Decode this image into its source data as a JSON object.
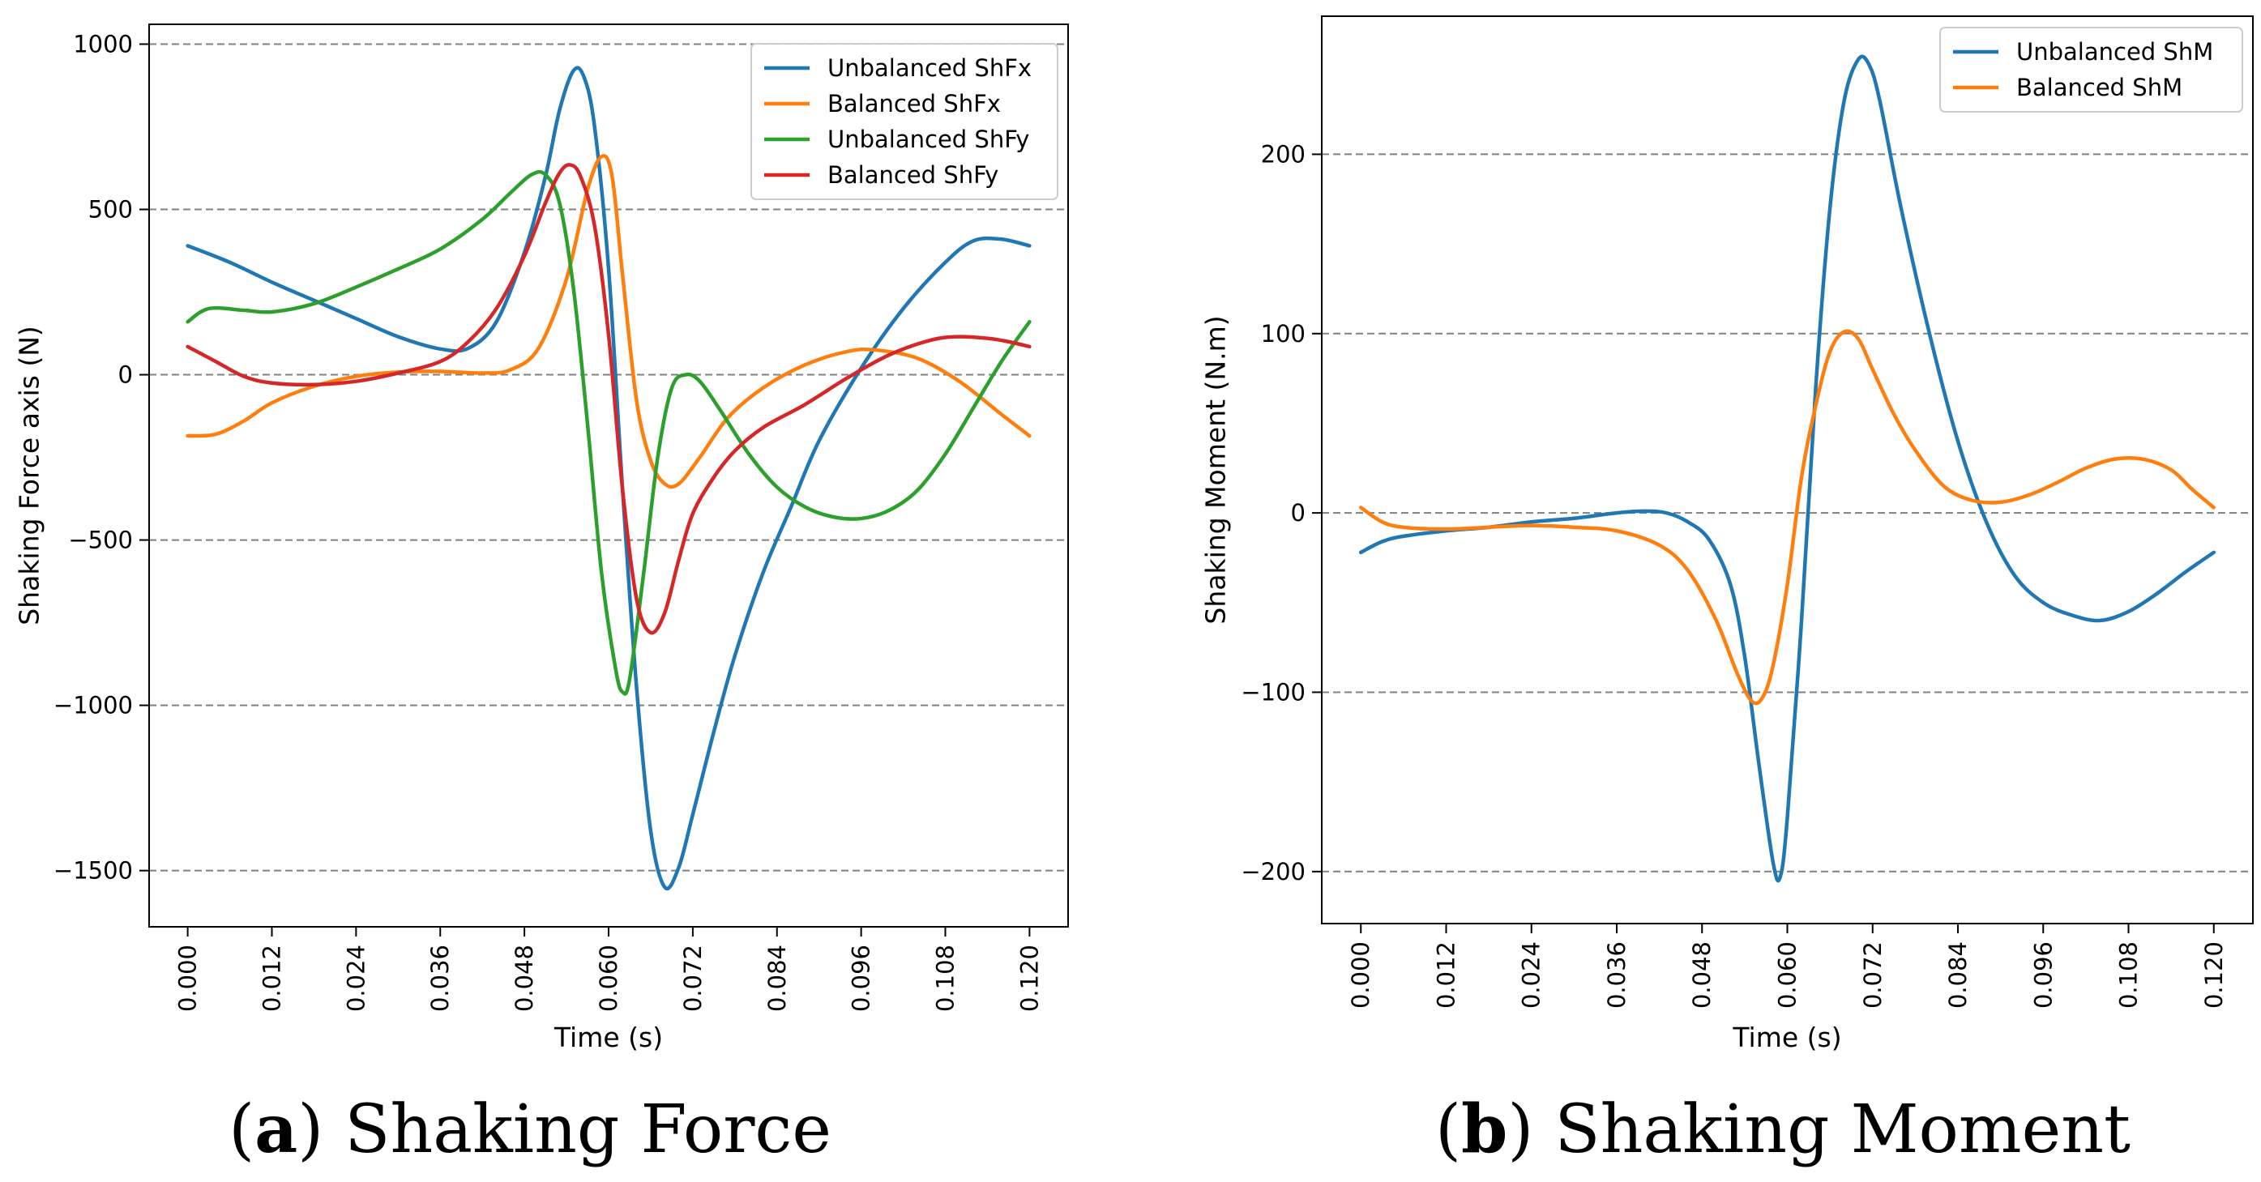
{
  "chart_data": [
    {
      "type": "line",
      "caption_letter": "a",
      "caption_text": "Shaking Force",
      "xlabel": "Time (s)",
      "ylabel": "Shaking Force axis (N)",
      "xlim": [
        -0.0055,
        0.1255
      ],
      "ylim": [
        -1670,
        1060
      ],
      "xticks": [
        "0.000",
        "0.012",
        "0.024",
        "0.036",
        "0.048",
        "0.060",
        "0.072",
        "0.084",
        "0.096",
        "0.108",
        "0.120"
      ],
      "yticks": [
        1000,
        500,
        0,
        -500,
        -1000,
        -1500
      ],
      "ytick_labels": [
        "1000",
        "500",
        "0",
        "−500",
        "−1000",
        "−1500"
      ],
      "grid": "horizontal dashed",
      "legend_position": "top-right",
      "series": [
        {
          "name": "Unbalanced ShFx",
          "color": "#1f77b4",
          "points": [
            [
              0,
              390
            ],
            [
              0.006,
              340
            ],
            [
              0.012,
              280
            ],
            [
              0.018,
              225
            ],
            [
              0.024,
              170
            ],
            [
              0.03,
              115
            ],
            [
              0.036,
              78
            ],
            [
              0.04,
              80
            ],
            [
              0.044,
              160
            ],
            [
              0.048,
              370
            ],
            [
              0.051,
              600
            ],
            [
              0.053,
              800
            ],
            [
              0.055,
              920
            ],
            [
              0.0565,
              900
            ],
            [
              0.058,
              750
            ],
            [
              0.06,
              320
            ],
            [
              0.062,
              -350
            ],
            [
              0.064,
              -950
            ],
            [
              0.066,
              -1380
            ],
            [
              0.068,
              -1550
            ],
            [
              0.07,
              -1490
            ],
            [
              0.072,
              -1330
            ],
            [
              0.075,
              -1080
            ],
            [
              0.078,
              -850
            ],
            [
              0.082,
              -600
            ],
            [
              0.086,
              -400
            ],
            [
              0.09,
              -200
            ],
            [
              0.096,
              20
            ],
            [
              0.102,
              200
            ],
            [
              0.108,
              340
            ],
            [
              0.112,
              405
            ],
            [
              0.116,
              410
            ],
            [
              0.12,
              390
            ]
          ]
        },
        {
          "name": "Balanced ShFx",
          "color": "#ff7f0e",
          "points": [
            [
              0,
              -185
            ],
            [
              0.004,
              -180
            ],
            [
              0.008,
              -140
            ],
            [
              0.012,
              -85
            ],
            [
              0.018,
              -35
            ],
            [
              0.024,
              -5
            ],
            [
              0.03,
              8
            ],
            [
              0.036,
              10
            ],
            [
              0.042,
              5
            ],
            [
              0.046,
              15
            ],
            [
              0.05,
              80
            ],
            [
              0.054,
              290
            ],
            [
              0.057,
              560
            ],
            [
              0.059,
              660
            ],
            [
              0.0605,
              600
            ],
            [
              0.062,
              300
            ],
            [
              0.064,
              -80
            ],
            [
              0.066,
              -260
            ],
            [
              0.068,
              -330
            ],
            [
              0.07,
              -330
            ],
            [
              0.073,
              -250
            ],
            [
              0.077,
              -130
            ],
            [
              0.082,
              -40
            ],
            [
              0.088,
              30
            ],
            [
              0.094,
              70
            ],
            [
              0.098,
              75
            ],
            [
              0.104,
              50
            ],
            [
              0.11,
              -20
            ],
            [
              0.116,
              -120
            ],
            [
              0.12,
              -185
            ]
          ]
        },
        {
          "name": "Unbalanced ShFy",
          "color": "#2ca02c",
          "points": [
            [
              0,
              160
            ],
            [
              0.003,
              200
            ],
            [
              0.008,
              195
            ],
            [
              0.012,
              190
            ],
            [
              0.018,
              215
            ],
            [
              0.024,
              265
            ],
            [
              0.03,
              320
            ],
            [
              0.036,
              380
            ],
            [
              0.042,
              470
            ],
            [
              0.046,
              550
            ],
            [
              0.049,
              605
            ],
            [
              0.051,
              605
            ],
            [
              0.053,
              520
            ],
            [
              0.055,
              260
            ],
            [
              0.057,
              -150
            ],
            [
              0.059,
              -600
            ],
            [
              0.061,
              -890
            ],
            [
              0.062,
              -960
            ],
            [
              0.063,
              -920
            ],
            [
              0.065,
              -600
            ],
            [
              0.067,
              -250
            ],
            [
              0.069,
              -40
            ],
            [
              0.071,
              0
            ],
            [
              0.073,
              -20
            ],
            [
              0.076,
              -110
            ],
            [
              0.08,
              -240
            ],
            [
              0.084,
              -340
            ],
            [
              0.088,
              -400
            ],
            [
              0.092,
              -430
            ],
            [
              0.096,
              -435
            ],
            [
              0.1,
              -410
            ],
            [
              0.104,
              -350
            ],
            [
              0.108,
              -240
            ],
            [
              0.112,
              -100
            ],
            [
              0.116,
              40
            ],
            [
              0.12,
              160
            ]
          ]
        },
        {
          "name": "Balanced ShFy",
          "color": "#d62728",
          "points": [
            [
              0,
              85
            ],
            [
              0.004,
              40
            ],
            [
              0.008,
              -5
            ],
            [
              0.012,
              -25
            ],
            [
              0.018,
              -30
            ],
            [
              0.024,
              -20
            ],
            [
              0.03,
              5
            ],
            [
              0.036,
              40
            ],
            [
              0.04,
              100
            ],
            [
              0.044,
              200
            ],
            [
              0.048,
              360
            ],
            [
              0.051,
              520
            ],
            [
              0.053,
              610
            ],
            [
              0.0545,
              635
            ],
            [
              0.056,
              600
            ],
            [
              0.058,
              450
            ],
            [
              0.06,
              120
            ],
            [
              0.062,
              -350
            ],
            [
              0.064,
              -680
            ],
            [
              0.066,
              -780
            ],
            [
              0.068,
              -720
            ],
            [
              0.07,
              -560
            ],
            [
              0.072,
              -420
            ],
            [
              0.075,
              -310
            ],
            [
              0.078,
              -230
            ],
            [
              0.082,
              -160
            ],
            [
              0.088,
              -90
            ],
            [
              0.094,
              -10
            ],
            [
              0.1,
              60
            ],
            [
              0.106,
              105
            ],
            [
              0.11,
              115
            ],
            [
              0.114,
              110
            ],
            [
              0.117,
              100
            ],
            [
              0.12,
              85
            ]
          ]
        }
      ]
    },
    {
      "type": "line",
      "caption_letter": "b",
      "caption_text": "Shaking Moment",
      "xlabel": "Time (s)",
      "ylabel": "Shaking Moment (N.m)",
      "xlim": [
        -0.0055,
        0.1255
      ],
      "ylim": [
        -229,
        277
      ],
      "xticks": [
        "0.000",
        "0.012",
        "0.024",
        "0.036",
        "0.048",
        "0.060",
        "0.072",
        "0.084",
        "0.096",
        "0.108",
        "0.120"
      ],
      "yticks": [
        200,
        100,
        0,
        -100,
        -200
      ],
      "ytick_labels": [
        "200",
        "100",
        "0",
        "−100",
        "−200"
      ],
      "grid": "horizontal dashed",
      "legend_position": "top-right",
      "series": [
        {
          "name": "Unbalanced ShM",
          "color": "#1f77b4",
          "points": [
            [
              0,
              -22
            ],
            [
              0.003,
              -16
            ],
            [
              0.006,
              -13
            ],
            [
              0.012,
              -10
            ],
            [
              0.018,
              -8
            ],
            [
              0.024,
              -5
            ],
            [
              0.03,
              -3
            ],
            [
              0.036,
              0
            ],
            [
              0.04,
              1
            ],
            [
              0.043,
              0
            ],
            [
              0.046,
              -5
            ],
            [
              0.049,
              -15
            ],
            [
              0.052,
              -40
            ],
            [
              0.054,
              -80
            ],
            [
              0.056,
              -140
            ],
            [
              0.058,
              -195
            ],
            [
              0.059,
              -203
            ],
            [
              0.06,
              -170
            ],
            [
              0.062,
              -60
            ],
            [
              0.064,
              70
            ],
            [
              0.066,
              170
            ],
            [
              0.068,
              230
            ],
            [
              0.07,
              253
            ],
            [
              0.0715,
              250
            ],
            [
              0.073,
              230
            ],
            [
              0.076,
              170
            ],
            [
              0.08,
              100
            ],
            [
              0.084,
              40
            ],
            [
              0.088,
              -5
            ],
            [
              0.092,
              -35
            ],
            [
              0.096,
              -50
            ],
            [
              0.1,
              -57
            ],
            [
              0.104,
              -60
            ],
            [
              0.108,
              -55
            ],
            [
              0.112,
              -45
            ],
            [
              0.116,
              -33
            ],
            [
              0.12,
              -22
            ]
          ]
        },
        {
          "name": "Balanced ShM",
          "color": "#ff7f0e",
          "points": [
            [
              0,
              3
            ],
            [
              0.003,
              -5
            ],
            [
              0.006,
              -8
            ],
            [
              0.012,
              -9
            ],
            [
              0.018,
              -8
            ],
            [
              0.024,
              -7
            ],
            [
              0.03,
              -8
            ],
            [
              0.036,
              -10
            ],
            [
              0.042,
              -18
            ],
            [
              0.046,
              -32
            ],
            [
              0.05,
              -60
            ],
            [
              0.053,
              -90
            ],
            [
              0.055,
              -105
            ],
            [
              0.0565,
              -103
            ],
            [
              0.058,
              -85
            ],
            [
              0.06,
              -40
            ],
            [
              0.062,
              20
            ],
            [
              0.064,
              60
            ],
            [
              0.066,
              90
            ],
            [
              0.068,
              101
            ],
            [
              0.07,
              97
            ],
            [
              0.072,
              80
            ],
            [
              0.075,
              55
            ],
            [
              0.078,
              35
            ],
            [
              0.082,
              15
            ],
            [
              0.086,
              7
            ],
            [
              0.09,
              6
            ],
            [
              0.094,
              10
            ],
            [
              0.098,
              17
            ],
            [
              0.102,
              25
            ],
            [
              0.106,
              30
            ],
            [
              0.11,
              30
            ],
            [
              0.114,
              24
            ],
            [
              0.117,
              13
            ],
            [
              0.12,
              3
            ]
          ]
        }
      ]
    }
  ]
}
